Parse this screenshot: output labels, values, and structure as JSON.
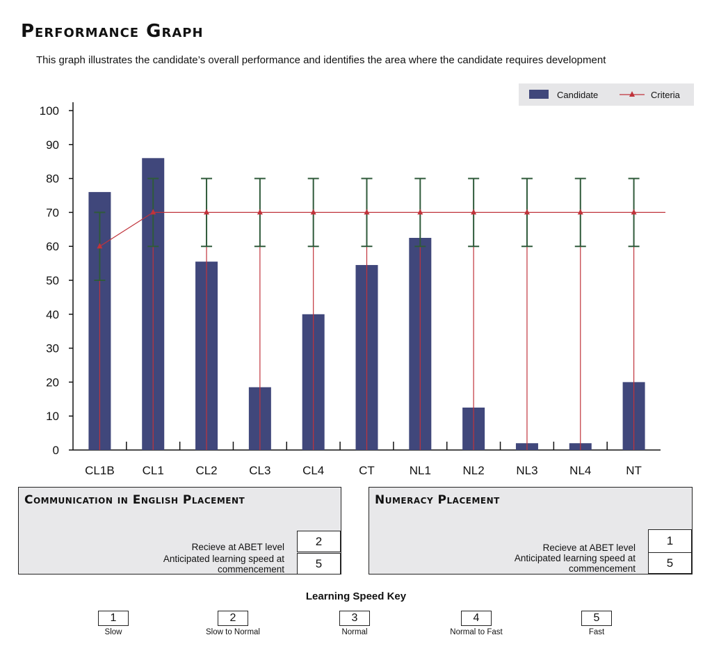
{
  "title": "Performance Graph",
  "subtitle": "This graph illustrates the candidate’s overall performance and identifies the area where the candidate requires development",
  "chart_data": {
    "type": "bar",
    "categories": [
      "CL1B",
      "CL1",
      "CL2",
      "CL3",
      "CL4",
      "CT",
      "NL1",
      "NL2",
      "NL3",
      "NL4",
      "NT"
    ],
    "series": [
      {
        "name": "Candidate",
        "type": "bar",
        "values": [
          76,
          86,
          55.5,
          18.5,
          40,
          54.5,
          62.5,
          12.5,
          2,
          2,
          20
        ]
      },
      {
        "name": "Criteria",
        "type": "line",
        "values": [
          60,
          70,
          70,
          70,
          70,
          70,
          70,
          70,
          70,
          70,
          70
        ],
        "error_low": [
          50,
          60,
          60,
          60,
          60,
          60,
          60,
          60,
          60,
          60,
          60
        ],
        "error_high": [
          70,
          80,
          80,
          80,
          80,
          80,
          80,
          80,
          80,
          80,
          80
        ]
      }
    ],
    "ylim": [
      0,
      100
    ],
    "yticks": [
      0,
      10,
      20,
      30,
      40,
      50,
      60,
      70,
      80,
      90,
      100
    ],
    "legend": "top-right",
    "colors": {
      "bar": "#40477b",
      "line": "#c0333b",
      "error": "#2f5a3a",
      "legend_bg": "#e6e6e8"
    }
  },
  "english_panel": {
    "title": "Communication in English Placement",
    "abet_label": "Recieve at ABET level",
    "abet_value": "2",
    "speed_label": "Anticipated learning speed at commencement",
    "speed_value": "5"
  },
  "numeracy_panel": {
    "title": "Numeracy Placement",
    "abet_label": "Recieve at ABET level",
    "abet_value": "1",
    "speed_label": "Anticipated learning speed at commencement",
    "speed_value": "5"
  },
  "speed_key": {
    "title": "Learning Speed Key",
    "items": [
      {
        "value": "1",
        "label": "Slow"
      },
      {
        "value": "2",
        "label": "Slow to Normal"
      },
      {
        "value": "3",
        "label": "Normal"
      },
      {
        "value": "4",
        "label": "Normal to Fast"
      },
      {
        "value": "5",
        "label": "Fast"
      }
    ]
  }
}
